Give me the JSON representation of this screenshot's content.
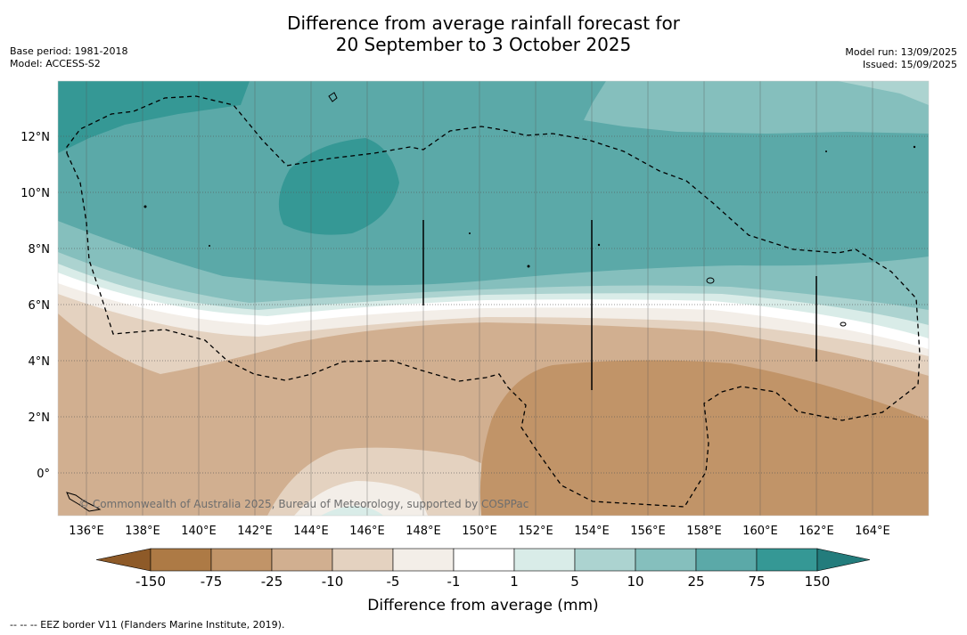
{
  "title": {
    "line1": "Difference from average rainfall forecast for",
    "line2": "20 September to 3 October 2025"
  },
  "meta_left": {
    "base_period": "Base period: 1981-2018",
    "model": "Model: ACCESS-S2"
  },
  "meta_right": {
    "model_run": "Model run: 13/09/2025",
    "issued": "Issued: 15/09/2025"
  },
  "map": {
    "x_ticks": [
      "136°E",
      "138°E",
      "140°E",
      "142°E",
      "144°E",
      "146°E",
      "148°E",
      "150°E",
      "152°E",
      "154°E",
      "156°E",
      "158°E",
      "160°E",
      "162°E",
      "164°E"
    ],
    "y_ticks": [
      "12°N",
      "10°N",
      "8°N",
      "6°N",
      "4°N",
      "2°N",
      "0°"
    ],
    "copyright": "© Commonwealth of Australia 2025, Bureau of Meteorology, supported by COSPPac"
  },
  "colorbar": {
    "labels": [
      "-150",
      "-75",
      "-25",
      "-10",
      "-5",
      "-1",
      "1",
      "5",
      "10",
      "25",
      "75",
      "150"
    ],
    "colors": [
      "#8e5a28",
      "#ad7a45",
      "#c19468",
      "#d1af90",
      "#e4d2c0",
      "#f3eee8",
      "#ffffff",
      "#d9ece8",
      "#acd3d0",
      "#85bfbd",
      "#5ba9a8",
      "#359895",
      "#237c7c"
    ],
    "title": "Difference from average (mm)"
  },
  "footnote": "--  --  -- EEZ border V11 (Flanders Marine Institute, 2019)."
}
